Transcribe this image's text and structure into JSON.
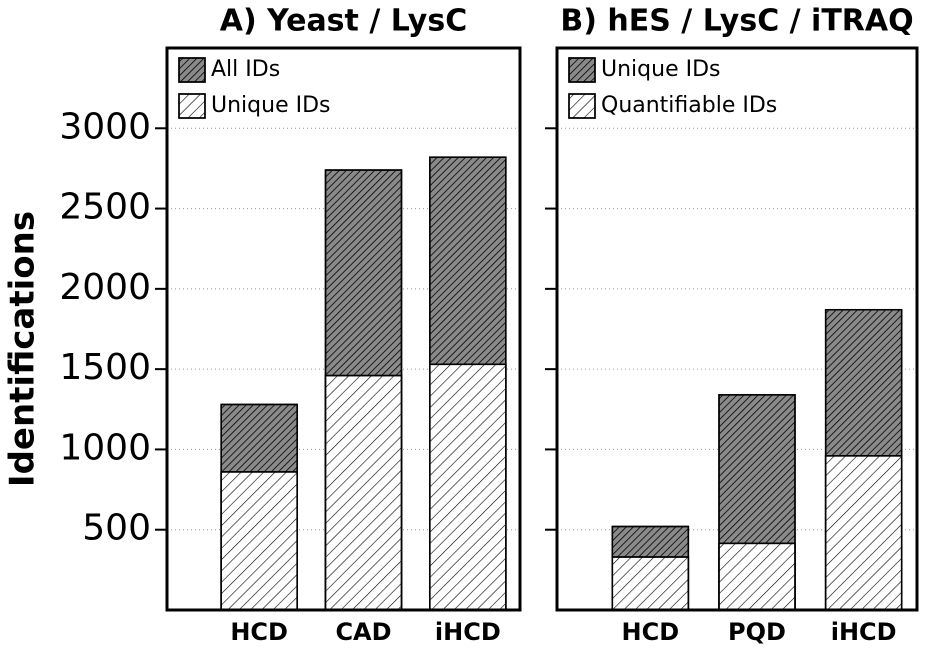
{
  "chart_data": [
    {
      "type": "bar",
      "title": "A) Yeast / LysC",
      "y_label": "Identifications",
      "categories": [
        "HCD",
        "CAD",
        "iHCD"
      ],
      "series": [
        {
          "name": "All IDs",
          "color": "#8a8a8a",
          "values": [
            1280,
            2740,
            2820
          ]
        },
        {
          "name": "Unique IDs",
          "color": "#ffffff",
          "values": [
            860,
            1460,
            1530
          ]
        }
      ],
      "ylim": [
        0,
        3500
      ],
      "yticks": [
        500,
        1000,
        1500,
        2000,
        2500,
        3000
      ],
      "grid": true,
      "legend": "top-left"
    },
    {
      "type": "bar",
      "title": "B) hES / LysC / iTRAQ",
      "categories": [
        "HCD",
        "PQD",
        "iHCD"
      ],
      "series": [
        {
          "name": "Unique IDs",
          "color": "#8a8a8a",
          "values": [
            520,
            1340,
            1870
          ]
        },
        {
          "name": "Quantifiable IDs",
          "color": "#ffffff",
          "values": [
            330,
            415,
            960
          ]
        }
      ],
      "ylim": [
        0,
        3500
      ],
      "yticks": [
        500,
        1000,
        1500,
        2000,
        2500,
        3000
      ],
      "grid": true,
      "legend": "top-left"
    }
  ]
}
